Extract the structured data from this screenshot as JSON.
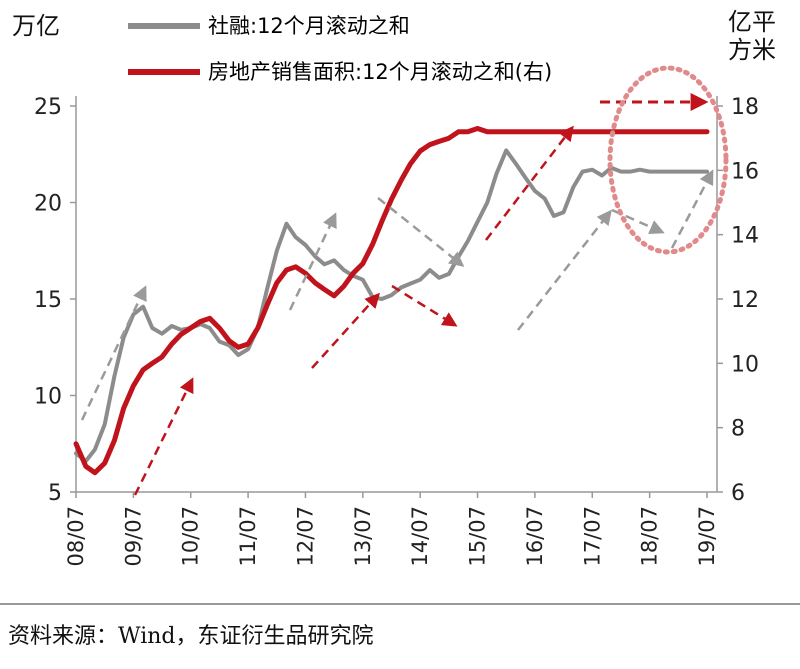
{
  "chart_data": {
    "type": "line",
    "left_axis": {
      "label": "万亿",
      "ticks": [
        5,
        10,
        15,
        20,
        25
      ],
      "ylim": [
        5,
        25
      ]
    },
    "right_axis": {
      "label": "亿平\n方米",
      "ticks": [
        6,
        8,
        10,
        12,
        14,
        16,
        18
      ],
      "ylim": [
        6,
        18
      ]
    },
    "x_ticks": [
      "08/07",
      "09/07",
      "10/07",
      "11/07",
      "12/07",
      "13/07",
      "14/07",
      "15/07",
      "16/07",
      "17/07",
      "18/07",
      "19/07"
    ],
    "series": [
      {
        "name": "社融:12个月滚动之和",
        "axis": "left",
        "color": "#8c8c8c",
        "x": [
          2008.5,
          2008.67,
          2008.83,
          2009.0,
          2009.17,
          2009.33,
          2009.5,
          2009.67,
          2009.83,
          2010.0,
          2010.17,
          2010.33,
          2010.5,
          2010.67,
          2010.83,
          2011.0,
          2011.17,
          2011.33,
          2011.5,
          2011.67,
          2011.83,
          2012.0,
          2012.17,
          2012.33,
          2012.5,
          2012.67,
          2012.83,
          2013.0,
          2013.17,
          2013.33,
          2013.5,
          2013.67,
          2013.83,
          2014.0,
          2014.17,
          2014.33,
          2014.5,
          2014.67,
          2014.83,
          2015.0,
          2015.17,
          2015.33,
          2015.5,
          2015.67,
          2015.83,
          2016.0,
          2016.17,
          2016.33,
          2016.5,
          2016.67,
          2016.83,
          2017.0,
          2017.17,
          2017.33,
          2017.5,
          2017.67,
          2017.83,
          2018.0,
          2018.17,
          2018.33,
          2018.5,
          2018.67,
          2018.83,
          2019.0,
          2019.17,
          2019.33,
          2019.5
        ],
        "values": [
          7.0,
          6.6,
          7.2,
          8.5,
          11.0,
          13.0,
          14.2,
          14.6,
          13.5,
          13.2,
          13.6,
          13.4,
          13.5,
          13.7,
          13.5,
          12.8,
          12.6,
          12.1,
          12.4,
          13.5,
          15.5,
          17.5,
          18.9,
          18.2,
          17.8,
          17.2,
          16.8,
          17.0,
          16.5,
          16.2,
          16.0,
          15.1,
          15.0,
          15.2,
          15.6,
          15.8,
          16.0,
          16.5,
          16.1,
          16.3,
          17.2,
          18.0,
          19.0,
          20.0,
          21.5,
          22.7,
          22.0,
          21.3,
          20.6,
          20.2,
          19.3,
          19.5,
          20.8,
          21.6,
          21.7,
          21.4,
          21.8,
          21.6,
          21.6,
          21.7,
          21.6,
          21.6,
          21.6,
          21.6,
          21.6,
          21.6,
          21.6
        ]
      },
      {
        "name": "房地产销售面积:12个月滚动之和(右)",
        "axis": "right",
        "color": "#c0131b",
        "x": [
          2008.5,
          2008.67,
          2008.83,
          2009.0,
          2009.17,
          2009.33,
          2009.5,
          2009.67,
          2009.83,
          2010.0,
          2010.17,
          2010.33,
          2010.5,
          2010.67,
          2010.83,
          2011.0,
          2011.17,
          2011.33,
          2011.5,
          2011.67,
          2011.83,
          2012.0,
          2012.17,
          2012.33,
          2012.5,
          2012.67,
          2012.83,
          2013.0,
          2013.17,
          2013.33,
          2013.5,
          2013.67,
          2013.83,
          2014.0,
          2014.17,
          2014.33,
          2014.5,
          2014.67,
          2014.83,
          2015.0,
          2015.17,
          2015.33,
          2015.5,
          2015.67,
          2015.83,
          2016.0,
          2016.17,
          2016.33,
          2016.5,
          2016.67,
          2016.83,
          2017.0,
          2017.17,
          2017.33,
          2017.5,
          2017.67,
          2017.83,
          2018.0,
          2018.17,
          2018.33,
          2018.5,
          2018.67,
          2018.83,
          2019.0,
          2019.17,
          2019.33,
          2019.5
        ],
        "values": [
          7.5,
          6.8,
          6.6,
          6.9,
          7.6,
          8.6,
          9.3,
          9.8,
          10.0,
          10.2,
          10.6,
          10.9,
          11.1,
          11.3,
          11.4,
          11.1,
          10.7,
          10.5,
          10.6,
          11.1,
          11.8,
          12.5,
          12.9,
          13.0,
          12.8,
          12.5,
          12.3,
          12.1,
          12.4,
          12.8,
          13.1,
          13.7,
          14.4,
          15.1,
          15.7,
          16.2,
          16.6,
          16.8,
          16.9,
          17.0,
          17.2,
          17.2,
          17.3,
          17.2,
          17.2,
          17.2,
          17.2,
          17.2,
          17.2,
          17.2,
          17.2,
          17.2,
          17.2,
          17.2,
          17.2,
          17.2,
          17.2,
          17.2,
          17.2,
          17.2,
          17.2,
          17.2,
          17.2,
          17.2,
          17.2,
          17.2,
          17.2
        ]
      }
    ]
  },
  "source_text": "资料来源：Wind，东证衍生品研究院"
}
